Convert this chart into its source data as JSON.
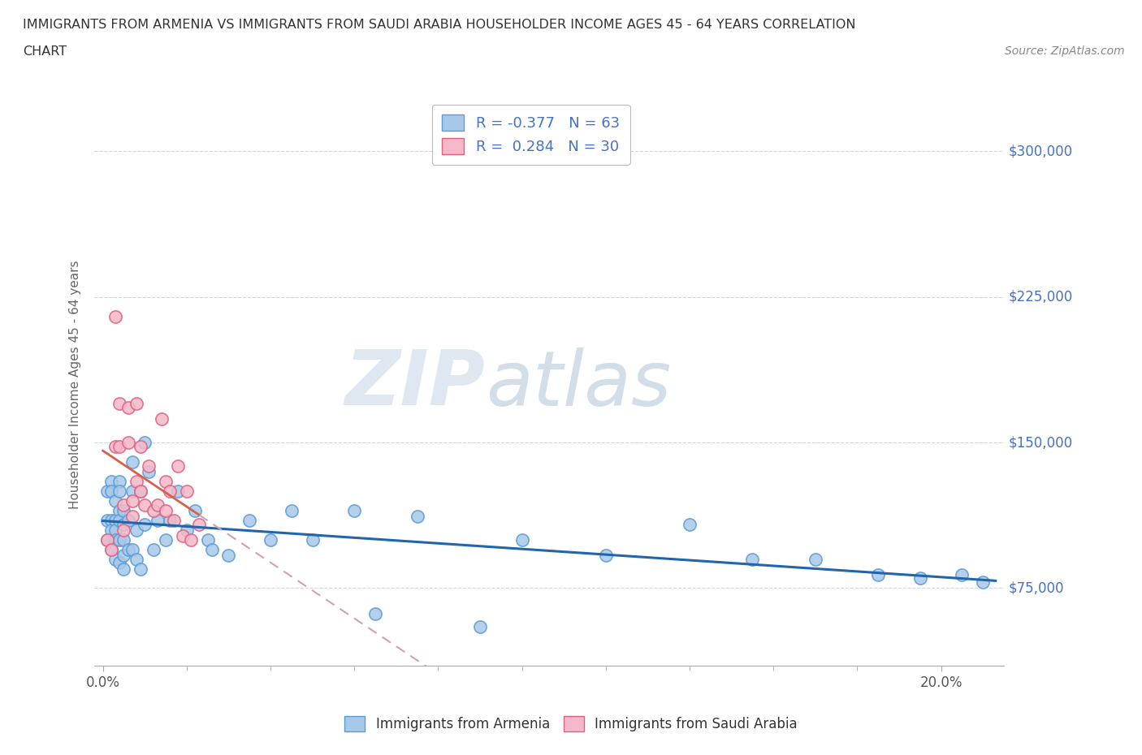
{
  "title_line1": "IMMIGRANTS FROM ARMENIA VS IMMIGRANTS FROM SAUDI ARABIA HOUSEHOLDER INCOME AGES 45 - 64 YEARS CORRELATION",
  "title_line2": "CHART",
  "source": "Source: ZipAtlas.com",
  "ylabel": "Householder Income Ages 45 - 64 years",
  "watermark_zip": "ZIP",
  "watermark_atlas": "atlas",
  "armenia_color": "#a8c8e8",
  "armenia_edge_color": "#5b9bd5",
  "saudi_color": "#f4b8c8",
  "saudi_edge_color": "#e06080",
  "armenia_trend_color": "#2166ac",
  "saudi_trend_color": "#d6604d",
  "saudi_dashed_color": "#d4a0b0",
  "R_armenia": -0.377,
  "N_armenia": 63,
  "R_saudi": 0.284,
  "N_saudi": 30,
  "xlim": [
    -0.002,
    0.215
  ],
  "ylim": [
    35000,
    325000
  ],
  "yticks": [
    75000,
    150000,
    225000,
    300000
  ],
  "xtick_positions": [
    0.0,
    0.2
  ],
  "xtick_labels": [
    "0.0%",
    "20.0%"
  ],
  "armenia_x": [
    0.001,
    0.001,
    0.001,
    0.002,
    0.002,
    0.002,
    0.002,
    0.002,
    0.003,
    0.003,
    0.003,
    0.003,
    0.003,
    0.004,
    0.004,
    0.004,
    0.004,
    0.004,
    0.004,
    0.005,
    0.005,
    0.005,
    0.005,
    0.005,
    0.006,
    0.006,
    0.007,
    0.007,
    0.007,
    0.008,
    0.008,
    0.009,
    0.009,
    0.01,
    0.01,
    0.011,
    0.012,
    0.013,
    0.015,
    0.016,
    0.018,
    0.02,
    0.022,
    0.025,
    0.026,
    0.03,
    0.035,
    0.04,
    0.045,
    0.05,
    0.06,
    0.065,
    0.075,
    0.09,
    0.1,
    0.12,
    0.14,
    0.155,
    0.17,
    0.185,
    0.195,
    0.205,
    0.21
  ],
  "armenia_y": [
    125000,
    110000,
    100000,
    130000,
    125000,
    110000,
    105000,
    95000,
    120000,
    110000,
    105000,
    100000,
    90000,
    130000,
    125000,
    115000,
    110000,
    100000,
    88000,
    115000,
    108000,
    100000,
    92000,
    85000,
    110000,
    95000,
    140000,
    125000,
    95000,
    105000,
    90000,
    125000,
    85000,
    150000,
    108000,
    135000,
    95000,
    110000,
    100000,
    110000,
    125000,
    105000,
    115000,
    100000,
    95000,
    92000,
    110000,
    100000,
    115000,
    100000,
    115000,
    62000,
    112000,
    55000,
    100000,
    92000,
    108000,
    90000,
    90000,
    82000,
    80000,
    82000,
    78000
  ],
  "saudi_x": [
    0.001,
    0.002,
    0.003,
    0.003,
    0.004,
    0.004,
    0.005,
    0.005,
    0.006,
    0.006,
    0.007,
    0.007,
    0.008,
    0.008,
    0.009,
    0.009,
    0.01,
    0.011,
    0.012,
    0.013,
    0.014,
    0.015,
    0.015,
    0.016,
    0.017,
    0.018,
    0.019,
    0.02,
    0.021,
    0.023
  ],
  "saudi_y": [
    100000,
    95000,
    215000,
    148000,
    170000,
    148000,
    105000,
    118000,
    168000,
    150000,
    120000,
    112000,
    170000,
    130000,
    148000,
    125000,
    118000,
    138000,
    115000,
    118000,
    162000,
    130000,
    115000,
    125000,
    110000,
    138000,
    102000,
    125000,
    100000,
    108000
  ]
}
